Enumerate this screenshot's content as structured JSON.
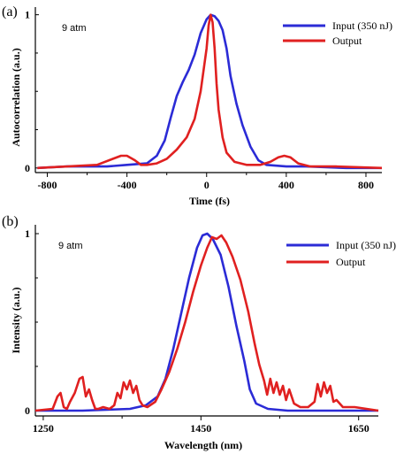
{
  "chart_data": [
    {
      "type": "line",
      "panel_label": "(a)",
      "annotation": "9 atm",
      "xlabel": "Time (fs)",
      "ylabel": "Autocorrelation (a.u.)",
      "xlim": [
        -860,
        880
      ],
      "ylim": [
        -0.03,
        1.05
      ],
      "xticks": [
        -800,
        -400,
        0,
        400,
        800
      ],
      "xtick_labels": [
        "-800",
        "-400",
        "0",
        "400",
        "800"
      ],
      "yticks": [
        0,
        1
      ],
      "ytick_labels": [
        "0",
        "1"
      ],
      "legend_position": "top-right",
      "series": [
        {
          "name": "Input (350 nJ)",
          "color": "#2b2bd6",
          "x": [
            -850,
            -700,
            -500,
            -400,
            -300,
            -250,
            -210,
            -180,
            -150,
            -120,
            -90,
            -60,
            -30,
            0,
            20,
            40,
            60,
            80,
            100,
            120,
            150,
            180,
            220,
            260,
            300,
            400,
            500,
            700,
            880
          ],
          "y": [
            0.0,
            0.01,
            0.01,
            0.02,
            0.03,
            0.08,
            0.18,
            0.33,
            0.47,
            0.56,
            0.64,
            0.74,
            0.88,
            0.97,
            1.0,
            0.99,
            0.96,
            0.9,
            0.78,
            0.6,
            0.42,
            0.28,
            0.14,
            0.05,
            0.02,
            0.01,
            0.01,
            0.0,
            0.0
          ]
        },
        {
          "name": "Output",
          "color": "#e02020",
          "x": [
            -850,
            -700,
            -550,
            -470,
            -430,
            -400,
            -360,
            -330,
            -300,
            -250,
            -200,
            -150,
            -100,
            -60,
            -30,
            0,
            10,
            20,
            30,
            40,
            50,
            60,
            80,
            100,
            140,
            200,
            270,
            320,
            360,
            390,
            420,
            460,
            520,
            650,
            880
          ],
          "y": [
            0.0,
            0.01,
            0.02,
            0.06,
            0.08,
            0.08,
            0.05,
            0.02,
            0.02,
            0.03,
            0.06,
            0.12,
            0.2,
            0.32,
            0.5,
            0.78,
            0.93,
            1.0,
            0.95,
            0.78,
            0.55,
            0.38,
            0.2,
            0.1,
            0.04,
            0.02,
            0.02,
            0.04,
            0.07,
            0.08,
            0.07,
            0.03,
            0.01,
            0.01,
            0.0
          ]
        }
      ]
    },
    {
      "type": "line",
      "panel_label": "(b)",
      "annotation": "9 atm",
      "xlabel": "Wavelength (nm)",
      "ylabel": "Intensity (a.u.)",
      "xlim": [
        1240,
        1675
      ],
      "ylim": [
        -0.03,
        1.05
      ],
      "xticks": [
        1250,
        1450,
        1650
      ],
      "xtick_labels": [
        "1250",
        "1450",
        "1650"
      ],
      "yticks": [
        0,
        1
      ],
      "ytick_labels": [
        "0",
        "1"
      ],
      "legend_position": "top-right",
      "series": [
        {
          "name": "Input (350 nJ)",
          "color": "#2b2bd6",
          "x": [
            1240,
            1300,
            1360,
            1380,
            1395,
            1405,
            1415,
            1425,
            1435,
            1445,
            1452,
            1458,
            1465,
            1475,
            1485,
            1495,
            1505,
            1512,
            1520,
            1535,
            1560,
            1620,
            1675
          ],
          "y": [
            0.0,
            0.0,
            0.01,
            0.03,
            0.08,
            0.18,
            0.35,
            0.55,
            0.75,
            0.92,
            0.99,
            1.0,
            0.97,
            0.88,
            0.7,
            0.48,
            0.28,
            0.12,
            0.04,
            0.01,
            0.0,
            0.0,
            0.0
          ]
        },
        {
          "name": "Output",
          "color": "#e02020",
          "x": [
            1240,
            1262,
            1268,
            1272,
            1276,
            1280,
            1284,
            1290,
            1296,
            1300,
            1304,
            1308,
            1312,
            1316,
            1320,
            1326,
            1334,
            1340,
            1344,
            1348,
            1352,
            1356,
            1360,
            1364,
            1368,
            1372,
            1376,
            1382,
            1392,
            1400,
            1410,
            1420,
            1430,
            1440,
            1450,
            1458,
            1464,
            1470,
            1476,
            1482,
            1490,
            1500,
            1510,
            1518,
            1524,
            1530,
            1534,
            1538,
            1542,
            1546,
            1550,
            1554,
            1558,
            1562,
            1568,
            1576,
            1586,
            1594,
            1598,
            1602,
            1606,
            1610,
            1614,
            1618,
            1622,
            1630,
            1645,
            1660,
            1675
          ],
          "y": [
            0.0,
            0.01,
            0.08,
            0.1,
            0.02,
            0.01,
            0.05,
            0.1,
            0.18,
            0.19,
            0.08,
            0.12,
            0.06,
            0.01,
            0.01,
            0.02,
            0.01,
            0.03,
            0.1,
            0.07,
            0.16,
            0.12,
            0.17,
            0.1,
            0.14,
            0.06,
            0.03,
            0.02,
            0.05,
            0.12,
            0.22,
            0.35,
            0.5,
            0.67,
            0.82,
            0.92,
            0.98,
            0.97,
            0.99,
            0.95,
            0.87,
            0.74,
            0.56,
            0.38,
            0.26,
            0.17,
            0.09,
            0.18,
            0.1,
            0.16,
            0.09,
            0.14,
            0.06,
            0.12,
            0.04,
            0.02,
            0.02,
            0.05,
            0.15,
            0.08,
            0.16,
            0.1,
            0.14,
            0.05,
            0.06,
            0.02,
            0.02,
            0.01,
            0.0
          ]
        }
      ]
    }
  ]
}
